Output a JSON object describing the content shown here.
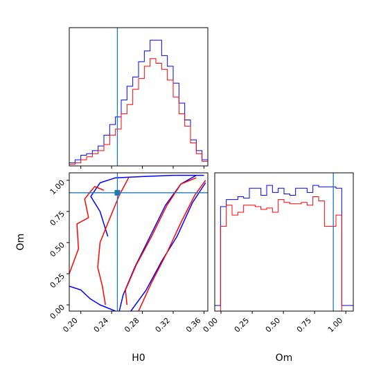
{
  "chart_data": {
    "type": "corner",
    "colors": {
      "series_a": "#0000ff",
      "series_b": "#ff0000",
      "truth": "#1f77b4"
    },
    "parameters": [
      {
        "name": "H0",
        "range": [
          0.185,
          0.365
        ],
        "ticks": [
          "0.20",
          "0.24",
          "0.28",
          "0.32",
          "0.36"
        ],
        "truth": 0.2475
      },
      {
        "name": "Om",
        "range": [
          -0.05,
          1.06
        ],
        "ticks": [
          "0.00",
          "0.25",
          "0.50",
          "0.75",
          "1.00"
        ],
        "truth": 0.9
      }
    ],
    "marginals": [
      {
        "parameter": "H0",
        "bin_edges": [
          0.185,
          0.1925,
          0.2,
          0.2075,
          0.215,
          0.2225,
          0.23,
          0.2375,
          0.245,
          0.2525,
          0.26,
          0.2675,
          0.275,
          0.2825,
          0.29,
          0.2975,
          0.305,
          0.3125,
          0.32,
          0.3275,
          0.335,
          0.3425,
          0.35,
          0.3575,
          0.365
        ],
        "series": [
          {
            "name": "",
            "color": "blue",
            "counts": [
              2,
              4,
              7,
              8,
              10,
              13,
              20,
              27,
              32,
              43,
              52,
              58,
              68,
              75,
              82,
              82,
              72,
              65,
              54,
              41,
              30,
              17,
              10,
              4
            ]
          },
          {
            "name": "",
            "color": "red",
            "counts": [
              1,
              2,
              4,
              6,
              8,
              10,
              14,
              20,
              24,
              34,
              40,
              50,
              57,
              65,
              70,
              67,
              63,
              56,
              45,
              34,
              26,
              15,
              8,
              3
            ]
          }
        ]
      },
      {
        "parameter": "Om",
        "bin_edges": [
          -0.05,
          -0.0038,
          0.0425,
          0.0888,
          0.135,
          0.1813,
          0.2275,
          0.2738,
          0.32,
          0.3663,
          0.4125,
          0.4588,
          0.505,
          0.5513,
          0.5975,
          0.6438,
          0.69,
          0.7363,
          0.7825,
          0.8288,
          0.875,
          0.9213,
          0.9675,
          1.0138,
          1.06
        ],
        "series": [
          {
            "name": "",
            "color": "blue",
            "counts": [
              0.04,
              0.74,
              0.79,
              0.79,
              0.81,
              0.8,
              0.87,
              0.87,
              0.82,
              0.89,
              0.84,
              0.87,
              0.83,
              0.82,
              0.87,
              0.87,
              0.84,
              0.89,
              0.88,
              0.88,
              0.88,
              0.87,
              0.04,
              0.04
            ]
          },
          {
            "name": "",
            "color": "red",
            "counts": [
              0.0,
              0.6,
              0.75,
              0.68,
              0.7,
              0.75,
              0.75,
              0.74,
              0.72,
              0.73,
              0.7,
              0.79,
              0.77,
              0.76,
              0.76,
              0.77,
              0.75,
              0.81,
              0.78,
              0.6,
              0.6,
              0.68,
              0.0,
              0.0
            ]
          }
        ]
      }
    ],
    "joint": {
      "x": "H0",
      "y": "Om",
      "contours": [
        {
          "color": "blue",
          "points": [
            [
              0.185,
              0.15
            ],
            [
              0.2,
              0.12
            ],
            [
              0.212,
              0.05
            ],
            [
              0.225,
              0.0
            ],
            [
              0.245,
              -0.05
            ]
          ]
        },
        {
          "color": "blue",
          "points": [
            [
              0.265,
              -0.05
            ],
            [
              0.285,
              0.12
            ],
            [
              0.305,
              0.35
            ],
            [
              0.325,
              0.55
            ],
            [
              0.345,
              0.82
            ],
            [
              0.362,
              0.98
            ]
          ]
        },
        {
          "color": "blue",
          "points": [
            [
              0.25,
              -0.05
            ],
            [
              0.255,
              0.08
            ],
            [
              0.27,
              0.3
            ],
            [
              0.29,
              0.55
            ],
            [
              0.31,
              0.8
            ],
            [
              0.33,
              0.97
            ],
            [
              0.35,
              1.04
            ]
          ]
        },
        {
          "color": "blue",
          "points": [
            [
              0.235,
              0.55
            ],
            [
              0.225,
              0.75
            ],
            [
              0.213,
              0.87
            ],
            [
              0.225,
              0.98
            ],
            [
              0.245,
              1.02
            ],
            [
              0.28,
              1.03
            ],
            [
              0.32,
              1.04
            ],
            [
              0.36,
              1.04
            ]
          ]
        },
        {
          "color": "red",
          "points": [
            [
              0.185,
              0.25
            ],
            [
              0.197,
              0.45
            ],
            [
              0.195,
              0.65
            ],
            [
              0.21,
              0.7
            ],
            [
              0.205,
              0.85
            ],
            [
              0.218,
              0.95
            ],
            [
              0.23,
              0.92
            ]
          ]
        },
        {
          "color": "red",
          "points": [
            [
              0.275,
              -0.05
            ],
            [
              0.292,
              0.18
            ],
            [
              0.312,
              0.42
            ],
            [
              0.33,
              0.66
            ],
            [
              0.348,
              0.88
            ],
            [
              0.362,
              1.0
            ]
          ]
        },
        {
          "color": "red",
          "points": [
            [
              0.26,
              0.0
            ],
            [
              0.258,
              0.12
            ],
            [
              0.272,
              0.32
            ],
            [
              0.292,
              0.55
            ],
            [
              0.312,
              0.8
            ],
            [
              0.33,
              0.97
            ],
            [
              0.35,
              1.02
            ]
          ]
        },
        {
          "color": "red",
          "points": [
            [
              0.232,
              0.0
            ],
            [
              0.228,
              0.15
            ],
            [
              0.222,
              0.3
            ],
            [
              0.225,
              0.5
            ],
            [
              0.238,
              0.7
            ],
            [
              0.25,
              0.88
            ],
            [
              0.262,
              1.02
            ]
          ]
        }
      ]
    },
    "x_labels": [
      "H0",
      "Om"
    ],
    "y_labels": [
      "Om"
    ],
    "grid": false,
    "legend": "none"
  }
}
